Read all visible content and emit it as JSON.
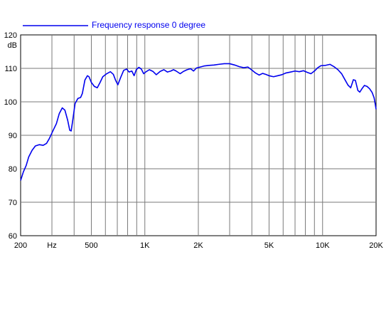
{
  "chart_data": {
    "type": "line",
    "title": "",
    "xlabel": "",
    "ylabel": "",
    "xscale": "log",
    "xlim": [
      200,
      20000
    ],
    "ylim": [
      60,
      120
    ],
    "grid": true,
    "legend_placement": "top-left",
    "x_tick_labels": [
      {
        "x": 200,
        "label": "200"
      },
      {
        "x": 300,
        "label": "Hz"
      },
      {
        "x": 500,
        "label": "500"
      },
      {
        "x": 1000,
        "label": "1K"
      },
      {
        "x": 2000,
        "label": "2K"
      },
      {
        "x": 5000,
        "label": "5K"
      },
      {
        "x": 10000,
        "label": "10K"
      },
      {
        "x": 20000,
        "label": "20K"
      }
    ],
    "x_gridlines": [
      200,
      300,
      400,
      500,
      600,
      700,
      800,
      900,
      1000,
      2000,
      3000,
      4000,
      5000,
      6000,
      7000,
      8000,
      9000,
      10000,
      20000
    ],
    "y_ticks": [
      60,
      70,
      80,
      90,
      100,
      110,
      120
    ],
    "y_unit_label": "dB",
    "series": [
      {
        "name": "Frequency response 0 degree",
        "color": "#0000ee",
        "points": [
          [
            200,
            76.5
          ],
          [
            207,
            79
          ],
          [
            215,
            81
          ],
          [
            222,
            83.5
          ],
          [
            232,
            85.5
          ],
          [
            242,
            86.8
          ],
          [
            255,
            87.2
          ],
          [
            268,
            87.0
          ],
          [
            280,
            87.6
          ],
          [
            290,
            89
          ],
          [
            305,
            91.5
          ],
          [
            318,
            93.5
          ],
          [
            330,
            96.5
          ],
          [
            343,
            98.2
          ],
          [
            355,
            97.5
          ],
          [
            368,
            94.5
          ],
          [
            378,
            91.5
          ],
          [
            385,
            91.3
          ],
          [
            393,
            94.5
          ],
          [
            405,
            99.5
          ],
          [
            420,
            101
          ],
          [
            435,
            101.3
          ],
          [
            445,
            102.5
          ],
          [
            460,
            106.5
          ],
          [
            475,
            107.8
          ],
          [
            485,
            107.5
          ],
          [
            500,
            105.8
          ],
          [
            520,
            104.6
          ],
          [
            540,
            104.2
          ],
          [
            560,
            105.8
          ],
          [
            580,
            107.5
          ],
          [
            610,
            108.4
          ],
          [
            640,
            109
          ],
          [
            665,
            108.2
          ],
          [
            685,
            106.4
          ],
          [
            705,
            105.1
          ],
          [
            730,
            107.2
          ],
          [
            760,
            109.4
          ],
          [
            790,
            109.8
          ],
          [
            815,
            108.9
          ],
          [
            845,
            109.2
          ],
          [
            870,
            107.8
          ],
          [
            895,
            109.6
          ],
          [
            925,
            110.3
          ],
          [
            955,
            109.8
          ],
          [
            985,
            108.4
          ],
          [
            1010,
            108.9
          ],
          [
            1060,
            109.6
          ],
          [
            1110,
            109.1
          ],
          [
            1160,
            108.1
          ],
          [
            1220,
            109.1
          ],
          [
            1280,
            109.6
          ],
          [
            1340,
            108.9
          ],
          [
            1400,
            109.2
          ],
          [
            1450,
            109.6
          ],
          [
            1500,
            109.2
          ],
          [
            1580,
            108.4
          ],
          [
            1650,
            109.1
          ],
          [
            1730,
            109.6
          ],
          [
            1810,
            109.9
          ],
          [
            1880,
            109.2
          ],
          [
            1950,
            110.1
          ],
          [
            2050,
            110.4
          ],
          [
            2150,
            110.7
          ],
          [
            2300,
            110.9
          ],
          [
            2450,
            111.0
          ],
          [
            2600,
            111.2
          ],
          [
            2800,
            111.4
          ],
          [
            3000,
            111.4
          ],
          [
            3200,
            111.0
          ],
          [
            3400,
            110.5
          ],
          [
            3600,
            110.2
          ],
          [
            3800,
            110.4
          ],
          [
            4000,
            109.5
          ],
          [
            4200,
            108.6
          ],
          [
            4400,
            108.0
          ],
          [
            4600,
            108.5
          ],
          [
            4800,
            108.2
          ],
          [
            5000,
            107.8
          ],
          [
            5300,
            107.5
          ],
          [
            5600,
            107.8
          ],
          [
            5900,
            108.1
          ],
          [
            6200,
            108.6
          ],
          [
            6600,
            108.9
          ],
          [
            7000,
            109.2
          ],
          [
            7400,
            109.0
          ],
          [
            7800,
            109.3
          ],
          [
            8200,
            108.8
          ],
          [
            8600,
            108.4
          ],
          [
            9000,
            109.2
          ],
          [
            9400,
            110.2
          ],
          [
            9800,
            110.8
          ],
          [
            10400,
            110.9
          ],
          [
            11000,
            111.2
          ],
          [
            11600,
            110.5
          ],
          [
            12200,
            109.6
          ],
          [
            12800,
            108.4
          ],
          [
            13400,
            106.5
          ],
          [
            13900,
            105.0
          ],
          [
            14400,
            104.2
          ],
          [
            14900,
            106.6
          ],
          [
            15300,
            106.4
          ],
          [
            15800,
            103.4
          ],
          [
            16200,
            102.9
          ],
          [
            16700,
            104.0
          ],
          [
            17200,
            104.9
          ],
          [
            17800,
            104.6
          ],
          [
            18400,
            103.9
          ],
          [
            19000,
            102.8
          ],
          [
            19500,
            101.2
          ],
          [
            19800,
            99.2
          ],
          [
            20000,
            97.8
          ]
        ]
      }
    ]
  }
}
